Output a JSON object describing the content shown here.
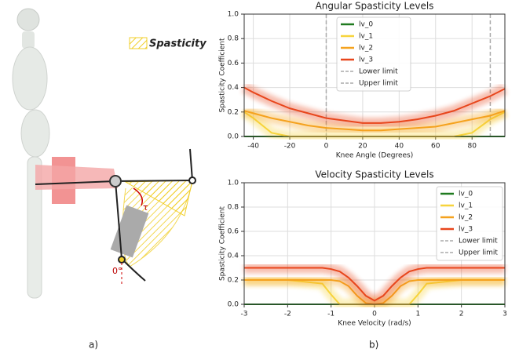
{
  "panel_labels": [
    "a)",
    "b)"
  ],
  "illustration": {
    "legend": "Spasticity",
    "torque": "τ",
    "angle": "0°"
  },
  "chart_data": [
    {
      "type": "line",
      "title": "Angular Spasticity Levels",
      "x_label": "Knee Angle (Degrees)",
      "y_label": "Spasticity Coefficient",
      "x": [
        -45,
        -40,
        -30,
        -20,
        -10,
        0,
        10,
        20,
        30,
        40,
        50,
        60,
        70,
        80,
        90,
        98
      ],
      "series": [
        {
          "name": "lv_0",
          "color": "#1f7a1f",
          "values": [
            0,
            0,
            0,
            0,
            0,
            0,
            0,
            0,
            0,
            0,
            0,
            0,
            0,
            0,
            0,
            0
          ]
        },
        {
          "name": "lv_1",
          "color": "#f7d43c",
          "values": [
            0.2,
            0.15,
            0.03,
            0,
            0,
            0,
            0,
            0,
            0,
            0,
            0,
            0,
            0,
            0.03,
            0.14,
            0.2
          ]
        },
        {
          "name": "lv_2",
          "color": "#f5a21e",
          "values": [
            0.21,
            0.19,
            0.15,
            0.12,
            0.09,
            0.07,
            0.06,
            0.05,
            0.05,
            0.06,
            0.07,
            0.08,
            0.11,
            0.14,
            0.17,
            0.21
          ]
        },
        {
          "name": "lv_3",
          "color": "#e8461c",
          "values": [
            0.4,
            0.36,
            0.29,
            0.23,
            0.19,
            0.15,
            0.13,
            0.11,
            0.11,
            0.12,
            0.14,
            0.17,
            0.21,
            0.27,
            0.33,
            0.39
          ]
        }
      ],
      "limits": [
        {
          "name": "Lower limit",
          "value": 0,
          "color": "#aaaaaa"
        },
        {
          "name": "Upper limit",
          "value": 90,
          "color": "#aaaaaa"
        }
      ],
      "xlim": [
        -45,
        98
      ],
      "xticks": [
        -40,
        -20,
        0,
        20,
        40,
        60,
        80
      ],
      "ylim": [
        0,
        1
      ],
      "yticks": [
        {
          "value": 0,
          "label": "0.0"
        },
        {
          "value": 0.2,
          "label": "0.2"
        },
        {
          "value": 0.4,
          "label": "0.4"
        },
        {
          "value": 0.6,
          "label": "0.6"
        },
        {
          "value": 0.8,
          "label": "0.8"
        },
        {
          "value": 1,
          "label": "1.0"
        }
      ],
      "grid": true
    },
    {
      "type": "line",
      "title": "Velocity Spasticity Levels",
      "x_label": "Knee Velocity (rad/s)",
      "y_label": "Spasticity Coefficient",
      "x": [
        -3,
        -2,
        -1.2,
        -1,
        -0.8,
        -0.6,
        -0.4,
        -0.2,
        0,
        0.2,
        0.4,
        0.6,
        0.8,
        1,
        1.2,
        2,
        3
      ],
      "series": [
        {
          "name": "lv_0",
          "color": "#1f7a1f",
          "values": [
            0,
            0,
            0,
            0,
            0,
            0,
            0,
            0,
            0,
            0,
            0,
            0,
            0,
            0,
            0,
            0,
            0
          ]
        },
        {
          "name": "lv_1",
          "color": "#f7d43c",
          "values": [
            0.2,
            0.2,
            0.17,
            0.08,
            0,
            0,
            0,
            0,
            0,
            0,
            0,
            0,
            0,
            0.08,
            0.17,
            0.2,
            0.2
          ]
        },
        {
          "name": "lv_2",
          "color": "#f5a21e",
          "values": [
            0.2,
            0.2,
            0.2,
            0.2,
            0.19,
            0.15,
            0.07,
            0.01,
            0,
            0.01,
            0.07,
            0.15,
            0.19,
            0.2,
            0.2,
            0.2,
            0.2
          ]
        },
        {
          "name": "lv_3",
          "color": "#e8461c",
          "values": [
            0.3,
            0.3,
            0.3,
            0.29,
            0.27,
            0.22,
            0.15,
            0.07,
            0.03,
            0.07,
            0.15,
            0.22,
            0.27,
            0.29,
            0.3,
            0.3,
            0.3
          ]
        }
      ],
      "limits": [
        {
          "name": "Lower limit",
          "color": "#aaaaaa"
        },
        {
          "name": "Upper limit",
          "color": "#aaaaaa"
        }
      ],
      "xlim": [
        -3,
        3
      ],
      "xticks": [
        -3,
        -2,
        -1,
        0,
        1,
        2,
        3
      ],
      "ylim": [
        0,
        1
      ],
      "yticks": [
        {
          "value": 0,
          "label": "0.0"
        },
        {
          "value": 0.2,
          "label": "0.2"
        },
        {
          "value": 0.4,
          "label": "0.4"
        },
        {
          "value": 0.6,
          "label": "0.6"
        },
        {
          "value": 0.8,
          "label": "0.8"
        },
        {
          "value": 1,
          "label": "1.0"
        }
      ],
      "grid": true
    }
  ]
}
